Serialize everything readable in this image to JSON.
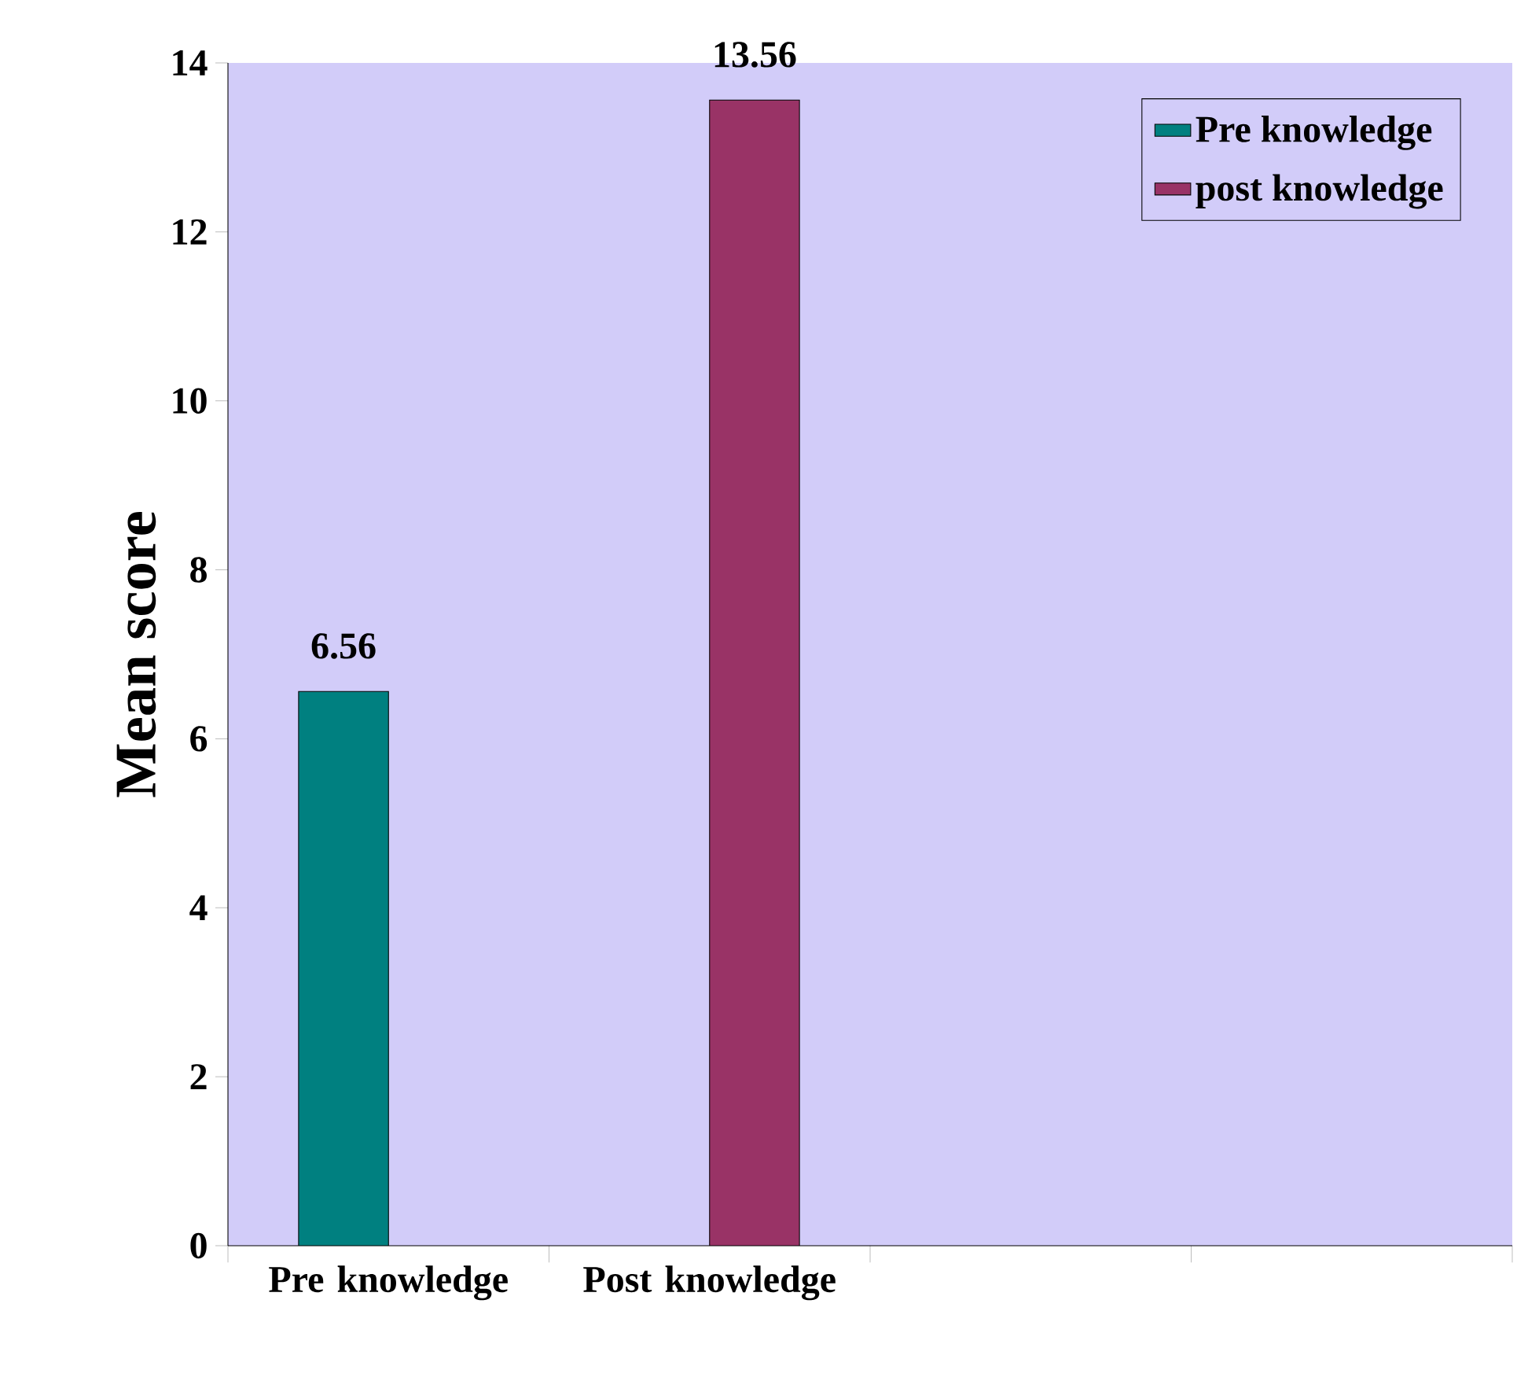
{
  "chart_data": {
    "type": "bar",
    "ylabel": "Mean score",
    "categories": [
      "Pre knowledge",
      "Post knowledge",
      null,
      null
    ],
    "series": [
      {
        "name": "Pre knowledge",
        "color": "#008080",
        "values": [
          6.56,
          null,
          null,
          null
        ]
      },
      {
        "name": "post knowledge",
        "color": "#993366",
        "values": [
          null,
          13.56,
          null,
          null
        ]
      }
    ],
    "ylim": [
      0,
      14
    ],
    "yticks": [
      0,
      2,
      4,
      6,
      8,
      10,
      12,
      14
    ],
    "data_labels": true,
    "legend": "top right",
    "grid": false
  }
}
